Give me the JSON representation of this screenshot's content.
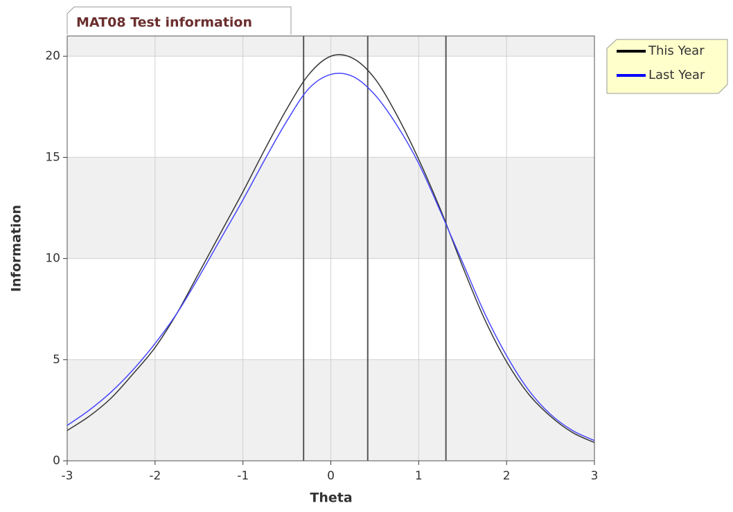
{
  "chart_data": {
    "type": "line",
    "title": "MAT08 Test information",
    "x_label": "Theta",
    "y_label": "Information",
    "x": [
      -3,
      -2.75,
      -2.5,
      -2.25,
      -2,
      -1.75,
      -1.5,
      -1.25,
      -1,
      -0.75,
      -0.5,
      -0.25,
      0,
      0.25,
      0.5,
      0.75,
      1,
      1.25,
      1.5,
      1.75,
      2,
      2.25,
      2.5,
      2.75,
      3
    ],
    "series": [
      {
        "name": "This Year",
        "color": "#333333",
        "legend_color": "#000000",
        "values": [
          1.5,
          2.2,
          3.1,
          4.3,
          5.6,
          7.3,
          9.3,
          11.3,
          13.3,
          15.4,
          17.4,
          19.1,
          20.0,
          19.9,
          18.9,
          17.1,
          14.9,
          12.4,
          9.6,
          7.0,
          4.9,
          3.3,
          2.2,
          1.4,
          0.9
        ]
      },
      {
        "name": "Last Year",
        "color": "#4444ff",
        "legend_color": "#0000ff",
        "values": [
          1.75,
          2.5,
          3.4,
          4.5,
          5.8,
          7.3,
          9.1,
          11.0,
          12.9,
          14.9,
          16.8,
          18.4,
          19.1,
          19.0,
          18.1,
          16.6,
          14.7,
          12.3,
          9.8,
          7.3,
          5.2,
          3.5,
          2.3,
          1.5,
          1.0
        ]
      }
    ],
    "cut_lines": [
      -0.31,
      0.42,
      1.31
    ],
    "xlim": [
      -3,
      3
    ],
    "xticks": [
      -3,
      -2,
      -1,
      0,
      1,
      2,
      3
    ],
    "ylim": [
      0,
      21
    ],
    "yticks": [
      0,
      5,
      10,
      15,
      20
    ],
    "grid": true,
    "legend": "top-right"
  }
}
